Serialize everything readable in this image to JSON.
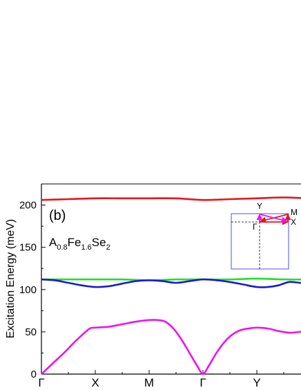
{
  "chart_data": {
    "type": "line",
    "panel_label": "(b)",
    "compound": {
      "base": "A",
      "sub1": "0.8",
      "mid": "Fe",
      "sub2": "1.6",
      "tail": "Se",
      "sub3": "2"
    },
    "ylabel": "Excitation Energy (meV)",
    "xlabel": "",
    "ylim": [
      0,
      225
    ],
    "y_ticks": [
      0,
      50,
      100,
      150,
      200
    ],
    "xlim": [
      0,
      5.55
    ],
    "x_ticks": [
      {
        "pos": 0,
        "label": "Γ"
      },
      {
        "pos": 1,
        "label": "X"
      },
      {
        "pos": 2,
        "label": "M"
      },
      {
        "pos": 3,
        "label": "Γ"
      },
      {
        "pos": 4,
        "label": "Y"
      }
    ],
    "series": [
      {
        "color": "#e8141c",
        "points": [
          [
            0,
            206
          ],
          [
            0.5,
            207
          ],
          [
            1,
            208
          ],
          [
            1.5,
            208
          ],
          [
            2,
            208
          ],
          [
            2.5,
            208
          ],
          [
            3,
            206
          ],
          [
            3.5,
            207
          ],
          [
            4,
            208
          ],
          [
            4.5,
            209
          ],
          [
            5,
            208
          ],
          [
            5.55,
            208
          ]
        ]
      },
      {
        "color": "#22e022",
        "points": [
          [
            0,
            112
          ],
          [
            0.5,
            112
          ],
          [
            1,
            112
          ],
          [
            1.5,
            112
          ],
          [
            2,
            111
          ],
          [
            2.5,
            112
          ],
          [
            3,
            112
          ],
          [
            3.5,
            112
          ],
          [
            4,
            113
          ],
          [
            4.5,
            112
          ],
          [
            5,
            112
          ],
          [
            5.55,
            113
          ]
        ]
      },
      {
        "color": "#1a1ad6",
        "points": [
          [
            0,
            112
          ],
          [
            0.25,
            111
          ],
          [
            0.5,
            108
          ],
          [
            0.75,
            105
          ],
          [
            1,
            103
          ],
          [
            1.25,
            104
          ],
          [
            1.5,
            107
          ],
          [
            1.75,
            110
          ],
          [
            2,
            111
          ],
          [
            2.25,
            110
          ],
          [
            2.5,
            108
          ],
          [
            2.75,
            110
          ],
          [
            3,
            112
          ],
          [
            3.25,
            111
          ],
          [
            3.5,
            109
          ],
          [
            3.75,
            106
          ],
          [
            4,
            103
          ],
          [
            4.2,
            103
          ],
          [
            4.4,
            105
          ],
          [
            4.6,
            109
          ],
          [
            4.8,
            108
          ],
          [
            5,
            106
          ],
          [
            5.2,
            104
          ],
          [
            5.55,
            104
          ]
        ]
      },
      {
        "color": "#ee12ee",
        "points": [
          [
            0,
            0
          ],
          [
            0.15,
            9
          ],
          [
            0.3,
            18
          ],
          [
            0.45,
            27
          ],
          [
            0.6,
            37
          ],
          [
            0.75,
            46
          ],
          [
            0.9,
            54
          ],
          [
            1,
            55
          ],
          [
            1.25,
            56
          ],
          [
            1.5,
            59
          ],
          [
            1.75,
            62
          ],
          [
            2,
            64
          ],
          [
            2.15,
            64
          ],
          [
            2.3,
            62
          ],
          [
            2.45,
            54
          ],
          [
            2.6,
            41
          ],
          [
            2.75,
            25
          ],
          [
            2.9,
            9
          ],
          [
            3,
            0
          ],
          [
            3.1,
            9
          ],
          [
            3.25,
            25
          ],
          [
            3.4,
            38
          ],
          [
            3.55,
            47
          ],
          [
            3.7,
            52
          ],
          [
            3.85,
            54
          ],
          [
            4,
            55
          ],
          [
            4.2,
            54
          ],
          [
            4.4,
            51
          ],
          [
            4.6,
            49
          ],
          [
            4.8,
            50
          ],
          [
            5,
            53
          ],
          [
            5.2,
            54
          ],
          [
            5.55,
            54
          ]
        ]
      }
    ],
    "inset": {
      "labels": {
        "gamma": "Γ",
        "x": "X",
        "y": "Y",
        "m": "M"
      },
      "colors": {
        "box": "#4c4cf0",
        "red": "#e8141c",
        "magenta": "#ee12ee"
      }
    }
  }
}
